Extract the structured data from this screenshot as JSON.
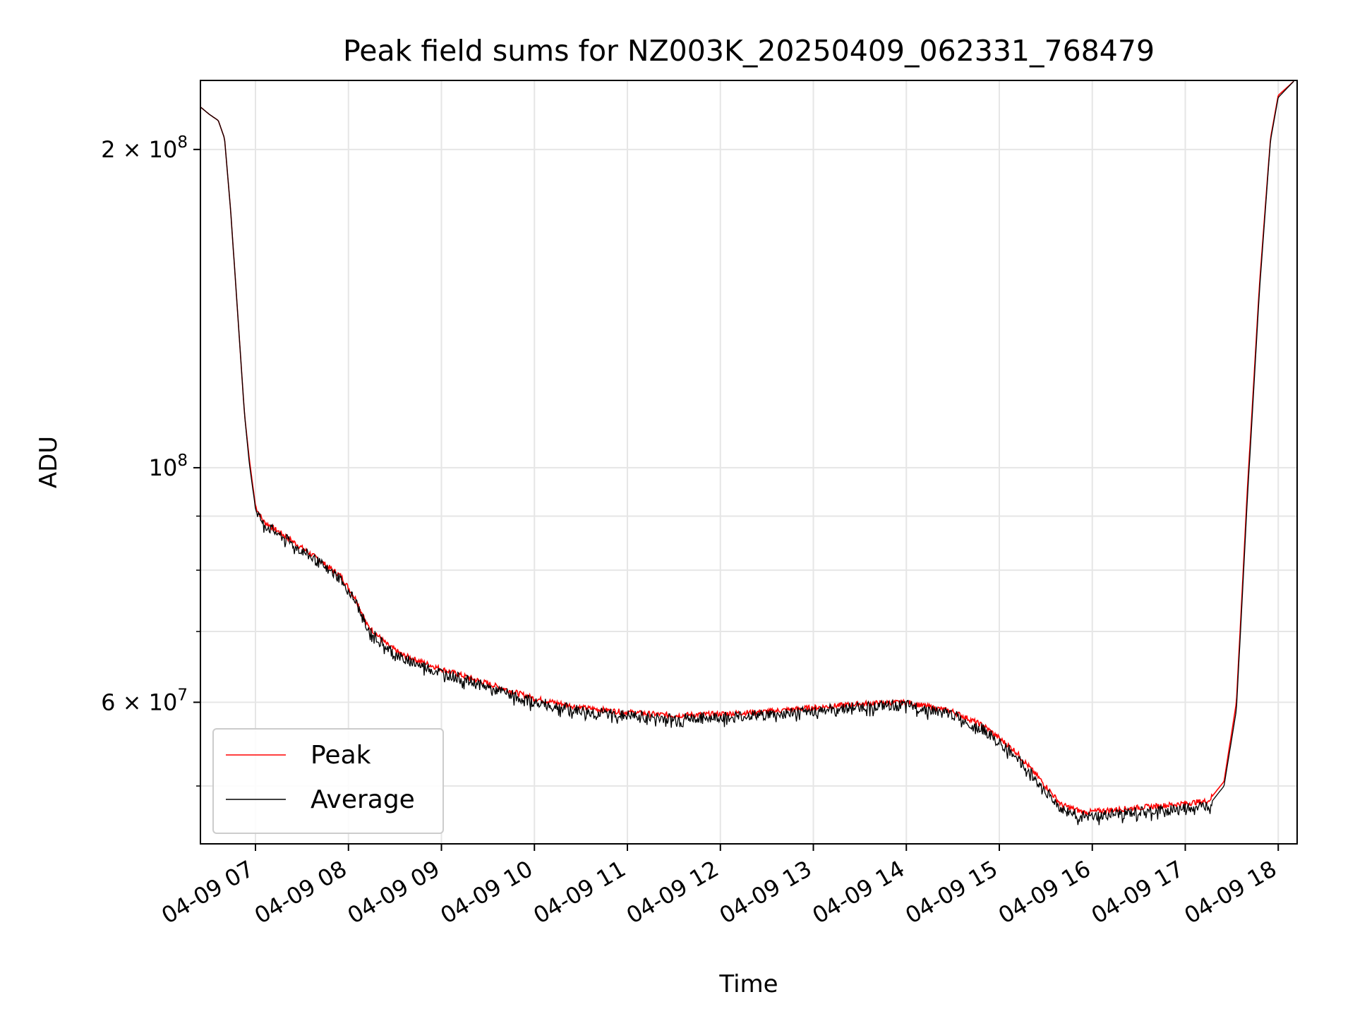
{
  "chart_data": {
    "type": "line",
    "title": "Peak field sums for NZ003K_20250409_062331_768479",
    "xlabel": "Time",
    "ylabel": "ADU",
    "xscale": "time",
    "yscale": "log",
    "xlim": [
      "2025-04-09T06:23:31",
      "2025-04-09T18:00:00"
    ],
    "ylim": [
      44000000,
      235000000
    ],
    "x_ticks": [
      "04-09 07",
      "04-09 08",
      "04-09 09",
      "04-09 10",
      "04-09 11",
      "04-09 12",
      "04-09 13",
      "04-09 14",
      "04-09 15",
      "04-09 16",
      "04-09 17",
      "04-09 18"
    ],
    "y_major_ticks": [
      {
        "value": 60000000,
        "label_mantissa": "6 × 10",
        "label_exp": "7"
      },
      {
        "value": 100000000,
        "label_mantissa": "10",
        "label_exp": "8"
      },
      {
        "value": 200000000,
        "label_mantissa": "2 × 10",
        "label_exp": "8"
      }
    ],
    "y_minor_ticks": [
      50000000,
      70000000,
      80000000,
      90000000
    ],
    "grid": true,
    "legend": {
      "position": "lower-left"
    },
    "series": [
      {
        "name": "Peak",
        "color": "#ff0000",
        "points": [
          [
            "2025-04-09T06:23:31",
            220000000
          ],
          [
            "2025-04-09T06:30",
            216000000
          ],
          [
            "2025-04-09T06:36",
            213000000
          ],
          [
            "2025-04-09T06:40",
            205000000
          ],
          [
            "2025-04-09T06:44",
            175000000
          ],
          [
            "2025-04-09T06:50",
            130000000
          ],
          [
            "2025-04-09T06:53",
            112000000
          ],
          [
            "2025-04-09T06:56",
            102000000
          ],
          [
            "2025-04-09T07:00",
            92000000
          ],
          [
            "2025-04-09T07:05",
            89000000
          ],
          [
            "2025-04-09T07:20",
            86000000
          ],
          [
            "2025-04-09T07:40",
            82000000
          ],
          [
            "2025-04-09T07:55",
            79000000
          ],
          [
            "2025-04-09T08:05",
            75000000
          ],
          [
            "2025-04-09T08:12",
            71000000
          ],
          [
            "2025-04-09T08:25",
            68000000
          ],
          [
            "2025-04-09T08:35",
            66500000
          ],
          [
            "2025-04-09T09:00",
            64500000
          ],
          [
            "2025-04-09T09:30",
            62500000
          ],
          [
            "2025-04-09T10:00",
            60500000
          ],
          [
            "2025-04-09T10:30",
            59300000
          ],
          [
            "2025-04-09T11:00",
            58700000
          ],
          [
            "2025-04-09T11:30",
            58300000
          ],
          [
            "2025-04-09T12:00",
            58500000
          ],
          [
            "2025-04-09T12:30",
            58800000
          ],
          [
            "2025-04-09T13:00",
            59300000
          ],
          [
            "2025-04-09T13:30",
            59800000
          ],
          [
            "2025-04-09T14:00",
            60000000
          ],
          [
            "2025-04-09T14:30",
            58800000
          ],
          [
            "2025-04-09T14:50",
            57000000
          ],
          [
            "2025-04-09T15:10",
            54000000
          ],
          [
            "2025-04-09T15:25",
            51000000
          ],
          [
            "2025-04-09T15:40",
            48000000
          ],
          [
            "2025-04-09T15:55",
            47200000
          ],
          [
            "2025-04-09T16:15",
            47500000
          ],
          [
            "2025-04-09T16:45",
            47900000
          ],
          [
            "2025-04-09T17:15",
            48400000
          ],
          [
            "2025-04-09T17:25",
            50500000
          ],
          [
            "2025-04-09T17:33",
            60000000
          ],
          [
            "2025-04-09T17:40",
            95000000
          ],
          [
            "2025-04-09T17:48",
            150000000
          ],
          [
            "2025-04-09T17:55",
            205000000
          ],
          [
            "2025-04-09T18:00",
            225000000
          ],
          [
            "2025-04-09T18:10",
            232000000
          ]
        ]
      },
      {
        "name": "Average",
        "color": "#000000",
        "points": [
          [
            "2025-04-09T06:23:31",
            220000000
          ],
          [
            "2025-04-09T06:30",
            216000000
          ],
          [
            "2025-04-09T06:36",
            213000000
          ],
          [
            "2025-04-09T06:40",
            205000000
          ],
          [
            "2025-04-09T06:44",
            175000000
          ],
          [
            "2025-04-09T06:50",
            130000000
          ],
          [
            "2025-04-09T06:53",
            112000000
          ],
          [
            "2025-04-09T06:56",
            101000000
          ],
          [
            "2025-04-09T07:00",
            91500000
          ],
          [
            "2025-04-09T07:05",
            88500000
          ],
          [
            "2025-04-09T07:20",
            85500000
          ],
          [
            "2025-04-09T07:40",
            81500000
          ],
          [
            "2025-04-09T07:55",
            78500000
          ],
          [
            "2025-04-09T08:05",
            74500000
          ],
          [
            "2025-04-09T08:12",
            70500000
          ],
          [
            "2025-04-09T08:25",
            67500000
          ],
          [
            "2025-04-09T08:35",
            66000000
          ],
          [
            "2025-04-09T09:00",
            64000000
          ],
          [
            "2025-04-09T09:30",
            62000000
          ],
          [
            "2025-04-09T10:00",
            60000000
          ],
          [
            "2025-04-09T10:30",
            58900000
          ],
          [
            "2025-04-09T11:00",
            58300000
          ],
          [
            "2025-04-09T11:30",
            57900000
          ],
          [
            "2025-04-09T12:00",
            58100000
          ],
          [
            "2025-04-09T12:30",
            58400000
          ],
          [
            "2025-04-09T13:00",
            58900000
          ],
          [
            "2025-04-09T13:30",
            59400000
          ],
          [
            "2025-04-09T14:00",
            59600000
          ],
          [
            "2025-04-09T14:30",
            58400000
          ],
          [
            "2025-04-09T14:50",
            56500000
          ],
          [
            "2025-04-09T15:10",
            53500000
          ],
          [
            "2025-04-09T15:25",
            50500000
          ],
          [
            "2025-04-09T15:40",
            47500000
          ],
          [
            "2025-04-09T15:55",
            46700000
          ],
          [
            "2025-04-09T16:15",
            47000000
          ],
          [
            "2025-04-09T16:45",
            47400000
          ],
          [
            "2025-04-09T17:15",
            47900000
          ],
          [
            "2025-04-09T17:25",
            50000000
          ],
          [
            "2025-04-09T17:33",
            59000000
          ],
          [
            "2025-04-09T17:40",
            93000000
          ],
          [
            "2025-04-09T17:48",
            148000000
          ],
          [
            "2025-04-09T17:55",
            204000000
          ],
          [
            "2025-04-09T18:00",
            224000000
          ],
          [
            "2025-04-09T18:10",
            232000000
          ]
        ]
      }
    ]
  }
}
